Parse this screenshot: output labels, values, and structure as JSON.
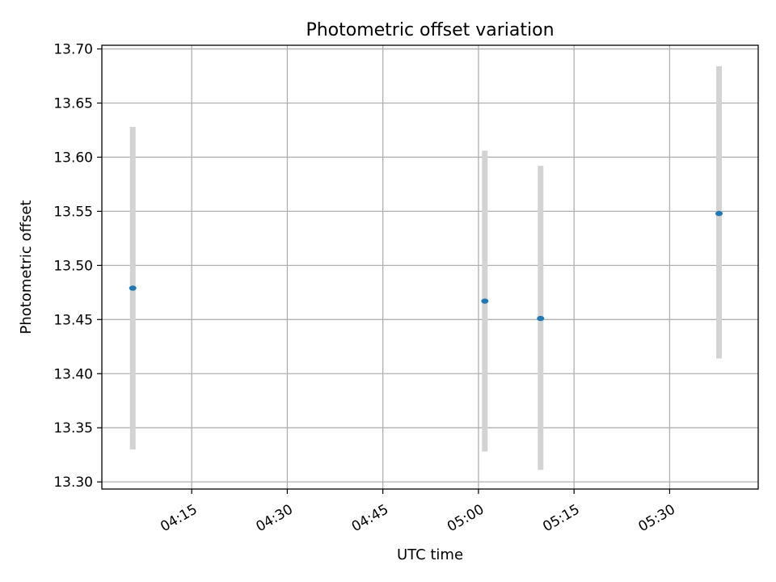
{
  "chart_data": {
    "type": "scatter",
    "title": "Photometric offset variation",
    "xlabel": "UTC time",
    "ylabel": "Photometric offset",
    "xlim": [
      "04:00:54",
      "05:43:54"
    ],
    "ylim": [
      13.2934,
      13.7034
    ],
    "grid": true,
    "x_ticks": [
      "04:15",
      "04:30",
      "04:45",
      "05:00",
      "05:15",
      "05:30"
    ],
    "y_ticks": [
      "13.30",
      "13.35",
      "13.40",
      "13.45",
      "13.50",
      "13.55",
      "13.60",
      "13.65",
      "13.70"
    ],
    "points": [
      {
        "x": "04:05:45",
        "y": 13.479,
        "yerr_low": 13.33,
        "yerr_high": 13.628
      },
      {
        "x": "05:01:00",
        "y": 13.467,
        "yerr_low": 13.328,
        "yerr_high": 13.606
      },
      {
        "x": "05:09:45",
        "y": 13.451,
        "yerr_low": 13.311,
        "yerr_high": 13.592
      },
      {
        "x": "05:37:45",
        "y": 13.548,
        "yerr_low": 13.414,
        "yerr_high": 13.684
      }
    ],
    "colors": {
      "points": "#1f77b4",
      "errorbars": "#d3d3d3",
      "grid": "#b0b0b0"
    }
  }
}
